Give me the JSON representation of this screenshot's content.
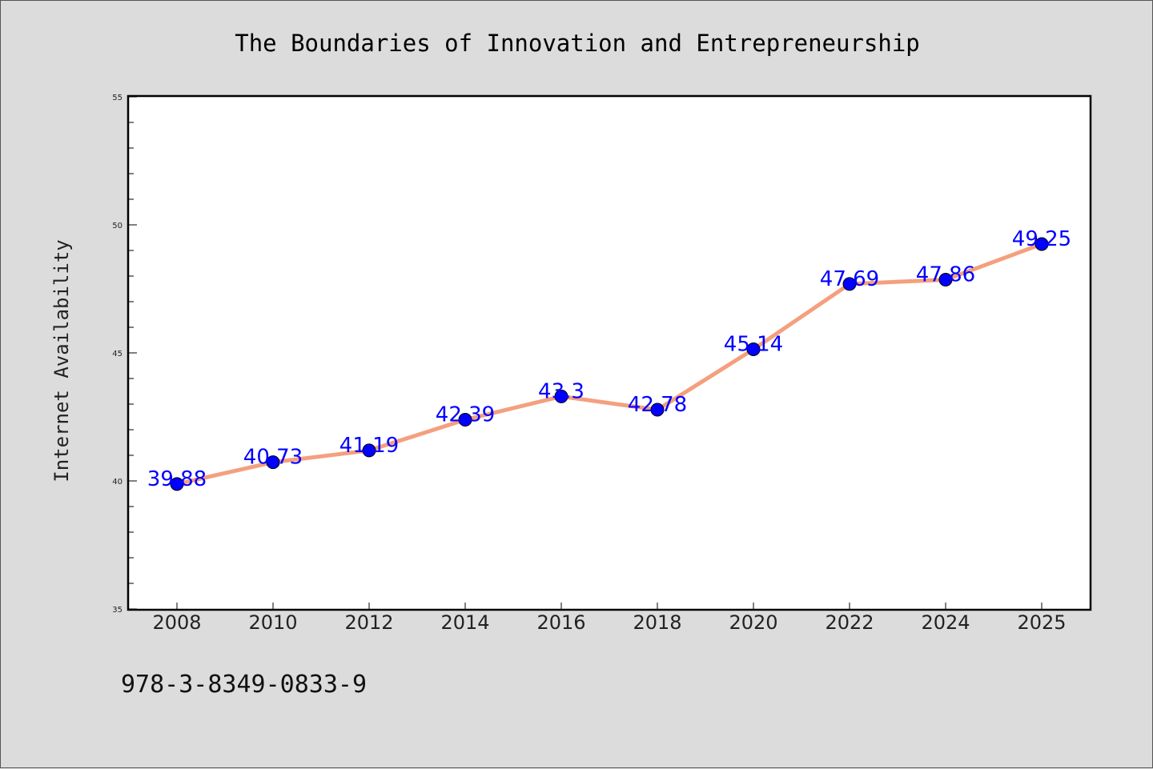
{
  "chart_data": {
    "type": "line",
    "title": "The Boundaries of Innovation and Entrepreneurship",
    "xlabel": "",
    "ylabel": "Internet Availability",
    "categories": [
      "2008",
      "2010",
      "2012",
      "2014",
      "2016",
      "2018",
      "2020",
      "2022",
      "2024",
      "2025"
    ],
    "series": [
      {
        "values": [
          39.88,
          40.73,
          41.19,
          42.39,
          43.3,
          42.78,
          45.14,
          47.69,
          47.86,
          49.25
        ],
        "labels": [
          "39.88",
          "40.73",
          "41.19",
          "42.39",
          "43.3",
          "42.78",
          "45.14",
          "47.69",
          "47.86",
          "49.25"
        ],
        "line_color": "#f4a07e",
        "marker_color": "#0000ff"
      }
    ],
    "ylim": [
      35,
      55
    ],
    "yticks": [
      "35",
      "40",
      "45",
      "50",
      "55"
    ],
    "grid": false,
    "legend": "none"
  },
  "footer_text": "978-3-8349-0833-9"
}
